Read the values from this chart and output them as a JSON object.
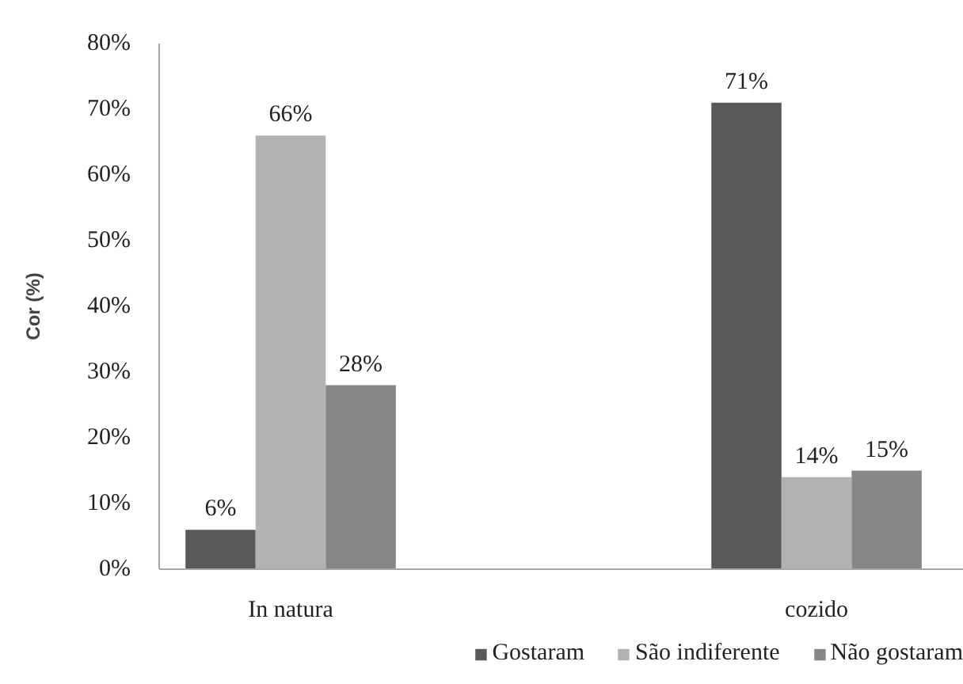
{
  "chart_data": {
    "type": "bar",
    "ylabel": "Cor (%)",
    "categories": [
      "In natura",
      "cozido"
    ],
    "series": [
      {
        "name": "Gostaram",
        "color": "#595959",
        "values": [
          6,
          71
        ],
        "value_labels": [
          "6%",
          "71%"
        ]
      },
      {
        "name": "São indiferente",
        "color": "#b2b2b2",
        "values": [
          66,
          14
        ],
        "value_labels": [
          "66%",
          "14%"
        ]
      },
      {
        "name": "Não gostaram",
        "color": "#878787",
        "values": [
          28,
          15
        ],
        "value_labels": [
          "28%",
          "15%"
        ]
      }
    ],
    "ylim": [
      0,
      80
    ],
    "yticks": [
      {
        "value": 0,
        "label": "0%"
      },
      {
        "value": 10,
        "label": "10%"
      },
      {
        "value": 20,
        "label": "20%"
      },
      {
        "value": 30,
        "label": "30%"
      },
      {
        "value": 40,
        "label": "40%"
      },
      {
        "value": 50,
        "label": "50%"
      },
      {
        "value": 60,
        "label": "60%"
      },
      {
        "value": 70,
        "label": "70%"
      },
      {
        "value": 80,
        "label": "80%"
      }
    ],
    "legend": "bottom"
  }
}
